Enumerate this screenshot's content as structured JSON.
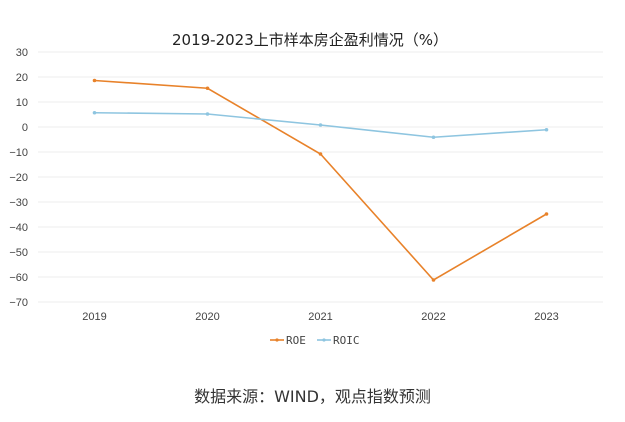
{
  "chart_data": {
    "type": "line",
    "title": "2019-2023上市样本房企盈利情况（%）",
    "xlabel": "",
    "ylabel": "",
    "categories": [
      "2019",
      "2020",
      "2021",
      "2022",
      "2023"
    ],
    "ylim": [
      -70,
      30
    ],
    "yticks": [
      30,
      20,
      10,
      0,
      -10,
      -20,
      -30,
      -40,
      -50,
      -60,
      -70
    ],
    "grid": true,
    "legend_position": "bottom-center",
    "series": [
      {
        "name": "ROE",
        "color": "#E8822A",
        "values": [
          18.6,
          15.5,
          -10.8,
          -61.2,
          -34.8
        ]
      },
      {
        "name": "ROIC",
        "color": "#8EC5E0",
        "values": [
          5.7,
          5.2,
          0.8,
          -4.1,
          -1.1
        ]
      }
    ]
  },
  "footer": {
    "source": "数据来源：WIND，观点指数预测"
  }
}
